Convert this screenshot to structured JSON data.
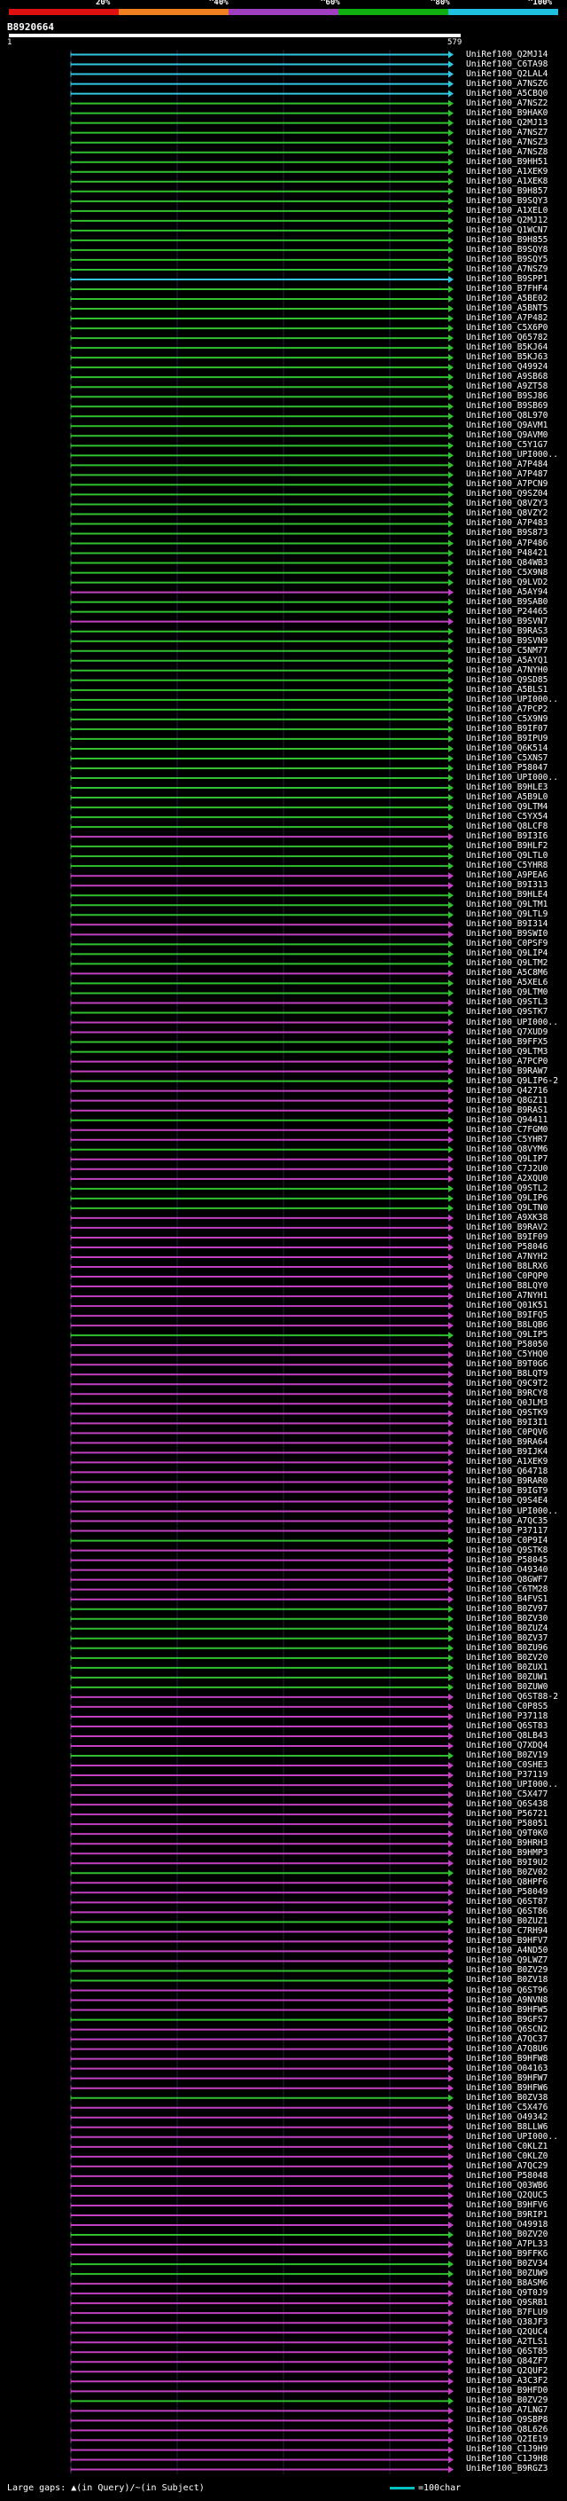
{
  "header": {
    "scale_labels": [
      "20%",
      "^40%",
      "^60%",
      "^80%",
      "^100%"
    ],
    "scale_colors": [
      "#e01010",
      "#f08020",
      "#a040c0",
      "#10b010",
      "#20c0e0"
    ],
    "query_id": "B8920664",
    "query_start": "1",
    "query_end": "579"
  },
  "footer": {
    "gaps_text": "Large gaps: ▲(in Query)/~(in Subject)",
    "legend_text": "=100char"
  },
  "hits": [
    {
      "label": "UniRef100_Q2MJ14",
      "color": "cyan"
    },
    {
      "label": "UniRef100_C6TA98",
      "color": "cyan"
    },
    {
      "label": "UniRef100_Q2LAL4",
      "color": "cyan"
    },
    {
      "label": "UniRef100_A7NSZ6",
      "color": "cyan"
    },
    {
      "label": "UniRef100_A5CBQ0",
      "color": "cyan"
    },
    {
      "label": "UniRef100_A7NSZ2",
      "color": "green"
    },
    {
      "label": "UniRef100_B9HAK0",
      "color": "green"
    },
    {
      "label": "UniRef100_Q2MJ13",
      "color": "green"
    },
    {
      "label": "UniRef100_A7NSZ7",
      "color": "green"
    },
    {
      "label": "UniRef100_A7NSZ3",
      "color": "green"
    },
    {
      "label": "UniRef100_A7NSZ8",
      "color": "green"
    },
    {
      "label": "UniRef100_B9HH51",
      "color": "green"
    },
    {
      "label": "UniRef100_A1XEK9",
      "color": "green"
    },
    {
      "label": "UniRef100_A1XEK8",
      "color": "green"
    },
    {
      "label": "UniRef100_B9H857",
      "color": "green"
    },
    {
      "label": "UniRef100_B9SQY3",
      "color": "green"
    },
    {
      "label": "UniRef100_A1XEL0",
      "color": "green"
    },
    {
      "label": "UniRef100_Q2MJ12",
      "color": "green"
    },
    {
      "label": "UniRef100_Q1WCN7",
      "color": "green"
    },
    {
      "label": "UniRef100_B9H855",
      "color": "green"
    },
    {
      "label": "UniRef100_B9SQY8",
      "color": "green"
    },
    {
      "label": "UniRef100_B9SQY5",
      "color": "green"
    },
    {
      "label": "UniRef100_A7NSZ9",
      "color": "green"
    },
    {
      "label": "UniRef100_B9SPP1",
      "color": "cyan"
    },
    {
      "label": "UniRef100_B7FHF4",
      "color": "green"
    },
    {
      "label": "UniRef100_A5BE02",
      "color": "green"
    },
    {
      "label": "UniRef100_A5BNT5",
      "color": "green"
    },
    {
      "label": "UniRef100_A7P482",
      "color": "green"
    },
    {
      "label": "UniRef100_C5X6P0",
      "color": "green"
    },
    {
      "label": "UniRef100_Q65782",
      "color": "green"
    },
    {
      "label": "UniRef100_B5KJ64",
      "color": "green"
    },
    {
      "label": "UniRef100_B5KJ63",
      "color": "green"
    },
    {
      "label": "UniRef100_Q49924",
      "color": "green"
    },
    {
      "label": "UniRef100_A9SB68",
      "color": "green"
    },
    {
      "label": "UniRef100_A9ZT58",
      "color": "green"
    },
    {
      "label": "UniRef100_B9SJ86",
      "color": "green"
    },
    {
      "label": "UniRef100_B9SB69",
      "color": "green"
    },
    {
      "label": "UniRef100_Q8L970",
      "color": "green"
    },
    {
      "label": "UniRef100_Q9AVM1",
      "color": "green"
    },
    {
      "label": "UniRef100_Q9AVM0",
      "color": "green"
    },
    {
      "label": "UniRef100_C5Y1G7",
      "color": "green"
    },
    {
      "label": "UniRef100_UPI000..",
      "color": "green"
    },
    {
      "label": "UniRef100_A7P484",
      "color": "green"
    },
    {
      "label": "UniRef100_A7P487",
      "color": "green"
    },
    {
      "label": "UniRef100_A7PCN9",
      "color": "green"
    },
    {
      "label": "UniRef100_Q9SZ04",
      "color": "green"
    },
    {
      "label": "UniRef100_Q8VZY3",
      "color": "green"
    },
    {
      "label": "UniRef100_Q8VZY2",
      "color": "green"
    },
    {
      "label": "UniRef100_A7P483",
      "color": "green"
    },
    {
      "label": "UniRef100_B9S873",
      "color": "green"
    },
    {
      "label": "UniRef100_A7P486",
      "color": "green"
    },
    {
      "label": "UniRef100_P48421",
      "color": "green"
    },
    {
      "label": "UniRef100_Q84WB3",
      "color": "green"
    },
    {
      "label": "UniRef100_C5X9N8",
      "color": "green"
    },
    {
      "label": "UniRef100_Q9LVD2",
      "color": "green"
    },
    {
      "label": "UniRef100_A5AY94",
      "color": "magenta"
    },
    {
      "label": "UniRef100_B9SAB0",
      "color": "green"
    },
    {
      "label": "UniRef100_P24465",
      "color": "green"
    },
    {
      "label": "UniRef100_B9SVN7",
      "color": "magenta"
    },
    {
      "label": "UniRef100_B9RAS3",
      "color": "green"
    },
    {
      "label": "UniRef100_B9SVN9",
      "color": "green"
    },
    {
      "label": "UniRef100_C5NM77",
      "color": "green"
    },
    {
      "label": "UniRef100_A5AYQ1",
      "color": "green"
    },
    {
      "label": "UniRef100_A7NYH0",
      "color": "green"
    },
    {
      "label": "UniRef100_Q9SD85",
      "color": "green"
    },
    {
      "label": "UniRef100_A5BLS1",
      "color": "green"
    },
    {
      "label": "UniRef100_UPI000..",
      "color": "green"
    },
    {
      "label": "UniRef100_A7PCP2",
      "color": "green"
    },
    {
      "label": "UniRef100_C5X9N9",
      "color": "green"
    },
    {
      "label": "UniRef100_B9IF07",
      "color": "green"
    },
    {
      "label": "UniRef100_B9IPU9",
      "color": "green"
    },
    {
      "label": "UniRef100_Q6K514",
      "color": "green"
    },
    {
      "label": "UniRef100_C5XNS7",
      "color": "green"
    },
    {
      "label": "UniRef100_P58047",
      "color": "green"
    },
    {
      "label": "UniRef100_UPI000..",
      "color": "green"
    },
    {
      "label": "UniRef100_B9HLE3",
      "color": "green"
    },
    {
      "label": "UniRef100_A5B9L0",
      "color": "green"
    },
    {
      "label": "UniRef100_Q9LTM4",
      "color": "green"
    },
    {
      "label": "UniRef100_C5YX54",
      "color": "green"
    },
    {
      "label": "UniRef100_Q8LCF8",
      "color": "green"
    },
    {
      "label": "UniRef100_B9I3I6",
      "color": "magenta"
    },
    {
      "label": "UniRef100_B9HLF2",
      "color": "green"
    },
    {
      "label": "UniRef100_Q9LTL0",
      "color": "green"
    },
    {
      "label": "UniRef100_C5YHR8",
      "color": "green"
    },
    {
      "label": "UniRef100_A9PEA6",
      "color": "magenta"
    },
    {
      "label": "UniRef100_B9I313",
      "color": "magenta"
    },
    {
      "label": "UniRef100_B9HLE4",
      "color": "green"
    },
    {
      "label": "UniRef100_Q9LTM1",
      "color": "green"
    },
    {
      "label": "UniRef100_Q9LTL9",
      "color": "green"
    },
    {
      "label": "UniRef100_B9I314",
      "color": "magenta"
    },
    {
      "label": "UniRef100_B9SWI0",
      "color": "magenta"
    },
    {
      "label": "UniRef100_C0PSF9",
      "color": "green"
    },
    {
      "label": "UniRef100_Q9LIP4",
      "color": "green"
    },
    {
      "label": "UniRef100_Q9LTM2",
      "color": "green"
    },
    {
      "label": "UniRef100_A5C8M6",
      "color": "magenta"
    },
    {
      "label": "UniRef100_A5XEL6",
      "color": "green"
    },
    {
      "label": "UniRef100_Q9LTM0",
      "color": "green"
    },
    {
      "label": "UniRef100_Q9STL3",
      "color": "magenta"
    },
    {
      "label": "UniRef100_Q9STK7",
      "color": "green"
    },
    {
      "label": "UniRef100_UPI000..",
      "color": "magenta"
    },
    {
      "label": "UniRef100_Q7XUD9",
      "color": "magenta"
    },
    {
      "label": "UniRef100_B9FFX5",
      "color": "green"
    },
    {
      "label": "UniRef100_Q9LTM3",
      "color": "green"
    },
    {
      "label": "UniRef100_A7PCP0",
      "color": "magenta"
    },
    {
      "label": "UniRef100_B9RAW7",
      "color": "magenta"
    },
    {
      "label": "UniRef100_Q9LIP6-2",
      "color": "green"
    },
    {
      "label": "UniRef100_Q42716",
      "color": "magenta"
    },
    {
      "label": "UniRef100_Q8GZ11",
      "color": "magenta"
    },
    {
      "label": "UniRef100_B9RAS1",
      "color": "magenta"
    },
    {
      "label": "UniRef100_Q94411",
      "color": "green"
    },
    {
      "label": "UniRef100_C7FGM0",
      "color": "magenta"
    },
    {
      "label": "UniRef100_C5YHR7",
      "color": "magenta"
    },
    {
      "label": "UniRef100_Q8VYM6",
      "color": "green"
    },
    {
      "label": "UniRef100_Q9LIP7",
      "color": "magenta"
    },
    {
      "label": "UniRef100_C7J2U0",
      "color": "magenta"
    },
    {
      "label": "UniRef100_A2XQU0",
      "color": "magenta"
    },
    {
      "label": "UniRef100_Q9STL2",
      "color": "green"
    },
    {
      "label": "UniRef100_Q9LIP6",
      "color": "green"
    },
    {
      "label": "UniRef100_Q9LTN0",
      "color": "green"
    },
    {
      "label": "UniRef100_A9XK38",
      "color": "magenta"
    },
    {
      "label": "UniRef100_B9RAV2",
      "color": "magenta"
    },
    {
      "label": "UniRef100_B9IF09",
      "color": "magenta"
    },
    {
      "label": "UniRef100_P58046",
      "color": "magenta"
    },
    {
      "label": "UniRef100_A7NYH2",
      "color": "magenta"
    },
    {
      "label": "UniRef100_B8LRX6",
      "color": "magenta"
    },
    {
      "label": "UniRef100_C0PQP0",
      "color": "magenta"
    },
    {
      "label": "UniRef100_B8LQY0",
      "color": "magenta"
    },
    {
      "label": "UniRef100_A7NYH1",
      "color": "magenta"
    },
    {
      "label": "UniRef100_Q01K51",
      "color": "magenta"
    },
    {
      "label": "UniRef100_B9IFQ5",
      "color": "magenta"
    },
    {
      "label": "UniRef100_B8LQB6",
      "color": "magenta"
    },
    {
      "label": "UniRef100_Q9LIP5",
      "color": "green"
    },
    {
      "label": "UniRef100_P58050",
      "color": "magenta"
    },
    {
      "label": "UniRef100_C5YHQ0",
      "color": "magenta"
    },
    {
      "label": "UniRef100_B9T0G6",
      "color": "magenta"
    },
    {
      "label": "UniRef100_B8LQT9",
      "color": "magenta"
    },
    {
      "label": "UniRef100_Q9C9T2",
      "color": "magenta"
    },
    {
      "label": "UniRef100_B9RCY8",
      "color": "magenta"
    },
    {
      "label": "UniRef100_Q0JLM3",
      "color": "magenta"
    },
    {
      "label": "UniRef100_Q9STK9",
      "color": "magenta"
    },
    {
      "label": "UniRef100_B9I3I1",
      "color": "magenta"
    },
    {
      "label": "UniRef100_C0PQV6",
      "color": "magenta"
    },
    {
      "label": "UniRef100_B9RA64",
      "color": "magenta"
    },
    {
      "label": "UniRef100_B9IJK4",
      "color": "magenta"
    },
    {
      "label": "UniRef100_A1XEK9",
      "color": "magenta"
    },
    {
      "label": "UniRef100_Q64718",
      "color": "magenta"
    },
    {
      "label": "UniRef100_B9RAR0",
      "color": "magenta"
    },
    {
      "label": "UniRef100_B9IGT9",
      "color": "magenta"
    },
    {
      "label": "UniRef100_Q9S4E4",
      "color": "magenta"
    },
    {
      "label": "UniRef100_UPI000..",
      "color": "magenta"
    },
    {
      "label": "UniRef100_A7QC35",
      "color": "magenta"
    },
    {
      "label": "UniRef100_P37117",
      "color": "magenta"
    },
    {
      "label": "UniRef100_C0P9I4",
      "color": "green"
    },
    {
      "label": "UniRef100_Q9STK8",
      "color": "magenta"
    },
    {
      "label": "UniRef100_P58045",
      "color": "magenta"
    },
    {
      "label": "UniRef100_O49340",
      "color": "magenta"
    },
    {
      "label": "UniRef100_Q8GWF7",
      "color": "magenta"
    },
    {
      "label": "UniRef100_C6TM28",
      "color": "magenta"
    },
    {
      "label": "UniRef100_B4FVS1",
      "color": "magenta"
    },
    {
      "label": "UniRef100_B0ZV97",
      "color": "green"
    },
    {
      "label": "UniRef100_B0ZV30",
      "color": "green"
    },
    {
      "label": "UniRef100_B0ZUZ4",
      "color": "green"
    },
    {
      "label": "UniRef100_B0ZV37",
      "color": "green"
    },
    {
      "label": "UniRef100_B0ZU96",
      "color": "green"
    },
    {
      "label": "UniRef100_B0ZV20",
      "color": "green"
    },
    {
      "label": "UniRef100_B0ZUX1",
      "color": "green"
    },
    {
      "label": "UniRef100_B0ZUW1",
      "color": "green"
    },
    {
      "label": "UniRef100_B0ZUW0",
      "color": "green"
    },
    {
      "label": "UniRef100_Q6ST88-2",
      "color": "magenta"
    },
    {
      "label": "UniRef100_C0P8S5",
      "color": "magenta"
    },
    {
      "label": "UniRef100_P37118",
      "color": "magenta"
    },
    {
      "label": "UniRef100_Q6ST83",
      "color": "magenta"
    },
    {
      "label": "UniRef100_Q8LB43",
      "color": "magenta"
    },
    {
      "label": "UniRef100_Q7XDQ4",
      "color": "magenta"
    },
    {
      "label": "UniRef100_B0ZV19",
      "color": "green"
    },
    {
      "label": "UniRef100_C0SHE3",
      "color": "magenta"
    },
    {
      "label": "UniRef100_P37119",
      "color": "magenta"
    },
    {
      "label": "UniRef100_UPI000..",
      "color": "magenta"
    },
    {
      "label": "UniRef100_C5X477",
      "color": "magenta"
    },
    {
      "label": "UniRef100_Q6S438",
      "color": "magenta"
    },
    {
      "label": "UniRef100_P56721",
      "color": "magenta"
    },
    {
      "label": "UniRef100_P58051",
      "color": "magenta"
    },
    {
      "label": "UniRef100_Q9T0K0",
      "color": "magenta"
    },
    {
      "label": "UniRef100_B9HRH3",
      "color": "magenta"
    },
    {
      "label": "UniRef100_B9HMP3",
      "color": "magenta"
    },
    {
      "label": "UniRef100_B9I9U2",
      "color": "magenta"
    },
    {
      "label": "UniRef100_B0ZV02",
      "color": "green"
    },
    {
      "label": "UniRef100_Q8HPF6",
      "color": "magenta"
    },
    {
      "label": "UniRef100_P58049",
      "color": "magenta"
    },
    {
      "label": "UniRef100_Q6ST87",
      "color": "magenta"
    },
    {
      "label": "UniRef100_Q6ST86",
      "color": "magenta"
    },
    {
      "label": "UniRef100_B0ZUZ1",
      "color": "green"
    },
    {
      "label": "UniRef100_C7RH94",
      "color": "magenta"
    },
    {
      "label": "UniRef100_B9HFV7",
      "color": "magenta"
    },
    {
      "label": "UniRef100_A4ND50",
      "color": "magenta"
    },
    {
      "label": "UniRef100_Q9LWZ7",
      "color": "magenta"
    },
    {
      "label": "UniRef100_B0ZV29",
      "color": "green"
    },
    {
      "label": "UniRef100_B0ZV18",
      "color": "green"
    },
    {
      "label": "UniRef100_Q6ST96",
      "color": "magenta"
    },
    {
      "label": "UniRef100_A9NVN8",
      "color": "magenta"
    },
    {
      "label": "UniRef100_B9HFW5",
      "color": "magenta"
    },
    {
      "label": "UniRef100_B9GFS7",
      "color": "green"
    },
    {
      "label": "UniRef100_Q6SCN2",
      "color": "magenta"
    },
    {
      "label": "UniRef100_A7QC37",
      "color": "magenta"
    },
    {
      "label": "UniRef100_A7Q8U6",
      "color": "magenta"
    },
    {
      "label": "UniRef100_B9HFW8",
      "color": "magenta"
    },
    {
      "label": "UniRef100_O04163",
      "color": "magenta"
    },
    {
      "label": "UniRef100_B9HFW7",
      "color": "magenta"
    },
    {
      "label": "UniRef100_B9HFW6",
      "color": "magenta"
    },
    {
      "label": "UniRef100_B0ZV38",
      "color": "green"
    },
    {
      "label": "UniRef100_C5X476",
      "color": "magenta"
    },
    {
      "label": "UniRef100_O49342",
      "color": "magenta"
    },
    {
      "label": "UniRef100_B8LLW6",
      "color": "magenta"
    },
    {
      "label": "UniRef100_UPI000..",
      "color": "magenta"
    },
    {
      "label": "UniRef100_C0KLZ1",
      "color": "magenta"
    },
    {
      "label": "UniRef100_C0KLZ0",
      "color": "magenta"
    },
    {
      "label": "UniRef100_A7QC29",
      "color": "magenta"
    },
    {
      "label": "UniRef100_P58048",
      "color": "magenta"
    },
    {
      "label": "UniRef100_Q03WB6",
      "color": "magenta"
    },
    {
      "label": "UniRef100_Q2QUC5",
      "color": "magenta"
    },
    {
      "label": "UniRef100_B9HFV6",
      "color": "magenta"
    },
    {
      "label": "UniRef100_B9RIP1",
      "color": "magenta"
    },
    {
      "label": "UniRef100_O49918",
      "color": "magenta"
    },
    {
      "label": "UniRef100_B0ZV20",
      "color": "green"
    },
    {
      "label": "UniRef100_A7PL33",
      "color": "magenta"
    },
    {
      "label": "UniRef100_B9FFK6",
      "color": "magenta"
    },
    {
      "label": "UniRef100_B0ZV34",
      "color": "green"
    },
    {
      "label": "UniRef100_B0ZUW9",
      "color": "green"
    },
    {
      "label": "UniRef100_B8ASM6",
      "color": "magenta"
    },
    {
      "label": "UniRef100_Q9T0J9",
      "color": "magenta"
    },
    {
      "label": "UniRef100_Q9SRB1",
      "color": "magenta"
    },
    {
      "label": "UniRef100_B7FLU9",
      "color": "magenta"
    },
    {
      "label": "UniRef100_Q38JF3",
      "color": "magenta"
    },
    {
      "label": "UniRef100_Q2QUC4",
      "color": "magenta"
    },
    {
      "label": "UniRef100_A2TLS1",
      "color": "magenta"
    },
    {
      "label": "UniRef100_Q6ST85",
      "color": "magenta"
    },
    {
      "label": "UniRef100_Q84ZF7",
      "color": "magenta"
    },
    {
      "label": "UniRef100_Q2QUF2",
      "color": "magenta"
    },
    {
      "label": "UniRef100_A3C3F2",
      "color": "magenta"
    },
    {
      "label": "UniRef100_B9HFD0",
      "color": "magenta"
    },
    {
      "label": "UniRef100_B0ZV29",
      "color": "green"
    },
    {
      "label": "UniRef100_A7LNG7",
      "color": "magenta"
    },
    {
      "label": "UniRef100_Q9SBP8",
      "color": "magenta"
    },
    {
      "label": "UniRef100_Q8L626",
      "color": "magenta"
    },
    {
      "label": "UniRef100_Q2IE19",
      "color": "magenta"
    },
    {
      "label": "UniRef100_C1J9H9",
      "color": "magenta"
    },
    {
      "label": "UniRef100_C1J9H8",
      "color": "magenta"
    },
    {
      "label": "UniRef100_B9RGZ3",
      "color": "magenta"
    }
  ]
}
